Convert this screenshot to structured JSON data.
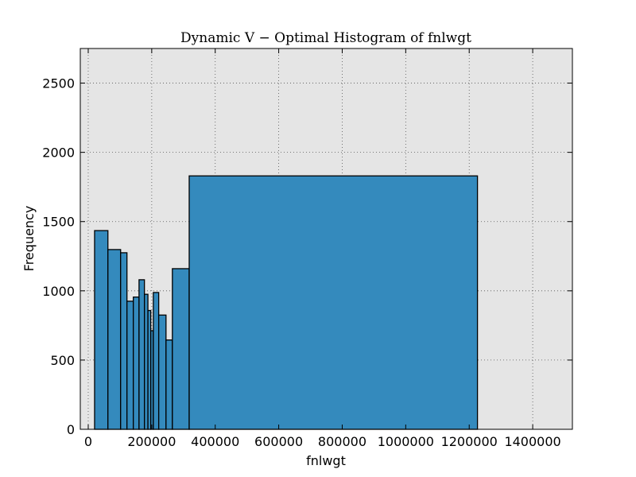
{
  "chart_data": {
    "type": "bar",
    "title": "Dynamic V − Optimal Histogram of fnlwgt",
    "xlabel": "fnlwgt",
    "ylabel": "Frequency",
    "xlim": [
      -25000,
      1525000
    ],
    "ylim": [
      0,
      2750
    ],
    "xticks": [
      0,
      200000,
      400000,
      600000,
      800000,
      1000000,
      1200000,
      1400000
    ],
    "yticks": [
      0,
      500,
      1000,
      1500,
      2000,
      2500
    ],
    "grid": true,
    "bins": [
      {
        "x0": 20000,
        "x1": 62000,
        "count": 1435
      },
      {
        "x0": 62000,
        "x1": 102000,
        "count": 1298
      },
      {
        "x0": 102000,
        "x1": 122000,
        "count": 1275
      },
      {
        "x0": 122000,
        "x1": 142000,
        "count": 925
      },
      {
        "x0": 142000,
        "x1": 160000,
        "count": 955
      },
      {
        "x0": 160000,
        "x1": 177000,
        "count": 1080
      },
      {
        "x0": 177000,
        "x1": 188000,
        "count": 975
      },
      {
        "x0": 188000,
        "x1": 197000,
        "count": 858
      },
      {
        "x0": 197000,
        "x1": 205000,
        "count": 712
      },
      {
        "x0": 205000,
        "x1": 222000,
        "count": 988
      },
      {
        "x0": 222000,
        "x1": 245000,
        "count": 825
      },
      {
        "x0": 245000,
        "x1": 265000,
        "count": 645
      },
      {
        "x0": 265000,
        "x1": 318000,
        "count": 1160
      },
      {
        "x0": 318000,
        "x1": 1226000,
        "count": 1830
      }
    ],
    "colors": {
      "bar_fill": "#348abd",
      "bar_edge": "#000000",
      "plot_bg": "#e5e5e5",
      "grid": "#555555"
    }
  }
}
